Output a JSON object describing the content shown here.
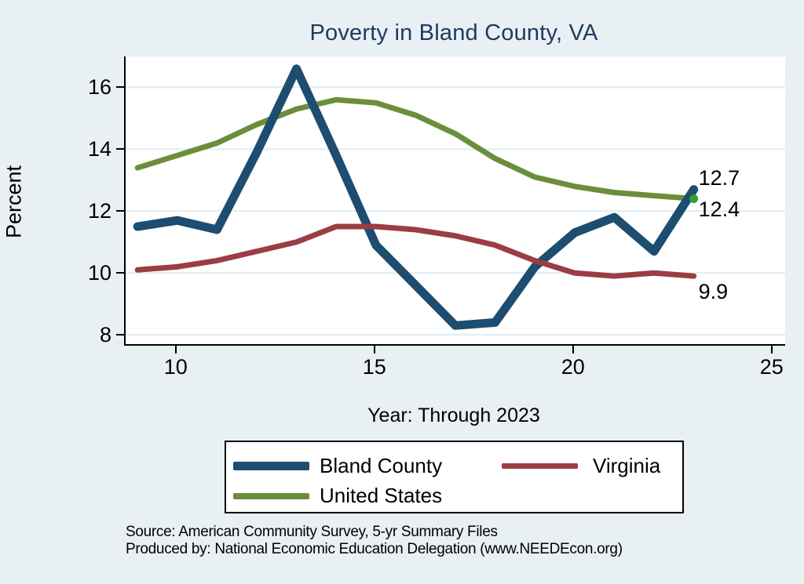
{
  "title": "Poverty in Bland County, VA",
  "y_axis": {
    "label": "Percent",
    "ticks": [
      8,
      10,
      12,
      14,
      16
    ]
  },
  "x_axis": {
    "label": "Year: Through 2023",
    "ticks": [
      10,
      15,
      20,
      25
    ]
  },
  "legend": {
    "items": [
      {
        "label": "Bland County",
        "color": "#1d4d70"
      },
      {
        "label": "Virginia",
        "color": "#9c3c44"
      },
      {
        "label": "United States",
        "color": "#6b8e3b"
      }
    ]
  },
  "source_line1": "Source: American Community Survey, 5-yr Summary Files",
  "source_line2": "Produced by: National Economic Education Delegation (www.NEEDEcon.org)",
  "colors": {
    "background": "#e8f0f3",
    "plot_background": "#ffffff",
    "gridline": "#e0ecf1",
    "title": "#1f3a5f",
    "bland_county": "#1d4d70",
    "virginia": "#9c3c44",
    "united_states": "#6b8e3b",
    "end_marker": "#2f9e35"
  },
  "chart_data": {
    "type": "line",
    "title": "Poverty in Bland County, VA",
    "xlabel": "Year: Through 2023",
    "ylabel": "Percent",
    "xlim": [
      8.7,
      25.3
    ],
    "ylim": [
      7.7,
      17.0
    ],
    "x_ticks": [
      10,
      15,
      20,
      25
    ],
    "y_ticks": [
      8,
      10,
      12,
      14,
      16
    ],
    "grid": "horizontal",
    "legend_position": "bottom",
    "x": [
      9,
      10,
      11,
      12,
      13,
      14,
      15,
      16,
      17,
      18,
      19,
      20,
      21,
      22,
      23
    ],
    "series": [
      {
        "name": "United States",
        "color": "#6b8e3b",
        "stroke_width": 7,
        "values": [
          13.4,
          13.8,
          14.2,
          14.8,
          15.3,
          15.6,
          15.5,
          15.1,
          14.5,
          13.7,
          13.1,
          12.8,
          12.6,
          12.5,
          12.4
        ],
        "end_label": "12.4",
        "end_label_dy": 13,
        "end_marker": true
      },
      {
        "name": "Bland County",
        "color": "#1d4d70",
        "stroke_width": 11,
        "values": [
          11.5,
          11.7,
          11.4,
          13.9,
          16.6,
          13.8,
          10.9,
          9.6,
          8.3,
          8.4,
          10.2,
          11.3,
          11.8,
          10.7,
          12.7
        ],
        "end_label": "12.7",
        "end_label_dy": -15,
        "end_marker": false
      },
      {
        "name": "Virginia",
        "color": "#9c3c44",
        "stroke_width": 7,
        "values": [
          10.1,
          10.2,
          10.4,
          10.7,
          11.0,
          11.5,
          11.5,
          11.4,
          11.2,
          10.9,
          10.4,
          10.0,
          9.9,
          10.0,
          9.9
        ],
        "end_label": "9.9",
        "end_label_dy": 20,
        "end_marker": false
      }
    ]
  }
}
